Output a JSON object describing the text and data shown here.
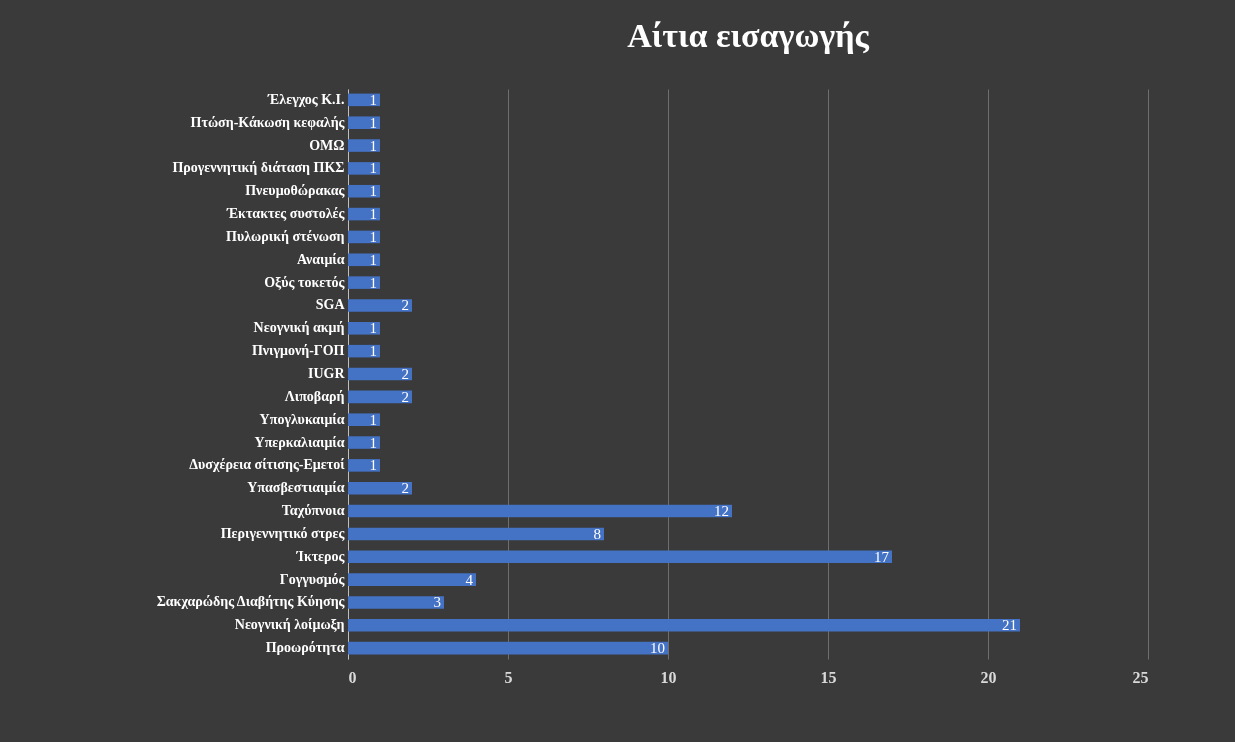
{
  "chart_data": {
    "type": "bar",
    "orientation": "horizontal",
    "title": "Αίτια εισαγωγής",
    "categories": [
      "Έλεγχος Κ.Ι.",
      "Πτώση-Κάκωση κεφαλής",
      "ΟΜΩ",
      "Προγεννητική διάταση ΠΚΣ",
      "Πνευμοθώρακας",
      "Έκτακτες συστολές",
      "Πυλωρική στένωση",
      "Αναιμία",
      "Οξύς τοκετός",
      "SGA",
      "Νεογνική ακμή",
      "Πνιγμονή-ΓΟΠ",
      "IUGR",
      "Λιποβαρή",
      "Υπογλυκαιμία",
      "Υπερκαλιαιμία",
      "Δυσχέρεια σίτισης-Εμετοί",
      "Υπασβεστιαιμία",
      "Ταχύπνοια",
      "Περιγεννητικό στρες",
      "Ίκτερος",
      "Γογγυσμός",
      "Σακχαρώδης Διαβήτης Κύησης",
      "Νεογνική λοίμωξη",
      "Προωρότητα"
    ],
    "values": [
      1,
      1,
      1,
      1,
      1,
      1,
      1,
      1,
      1,
      2,
      1,
      1,
      2,
      2,
      1,
      1,
      1,
      2,
      12,
      8,
      17,
      4,
      3,
      21,
      10
    ],
    "color": "#4472c4",
    "xlim": [
      0,
      25
    ],
    "xticks": [
      0,
      5,
      10,
      15,
      20,
      25
    ],
    "grid": "x",
    "data_labels": true
  }
}
